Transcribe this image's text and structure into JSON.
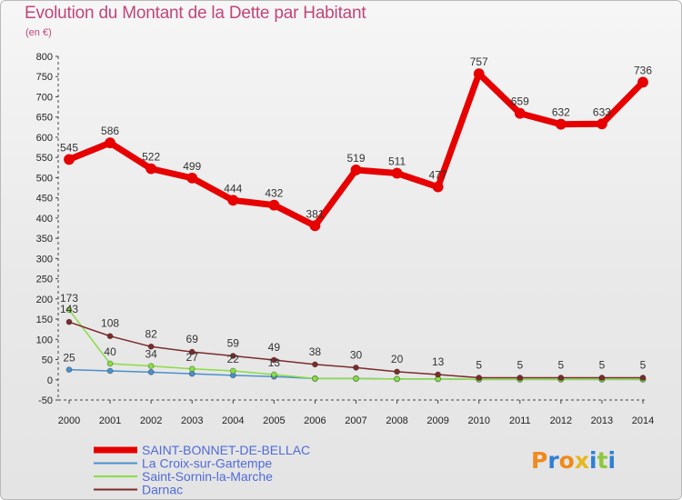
{
  "header": {
    "title": "Evolution du Montant de la Dette par Habitant",
    "subtitle": "(en €)"
  },
  "logo": {
    "letters": [
      "P",
      "r",
      "o",
      "x",
      "i",
      "t",
      "i"
    ]
  },
  "chart_data": {
    "type": "line",
    "title": "Evolution du Montant de la Dette par Habitant",
    "ylabel": "(en €)",
    "xlabel": "",
    "x": [
      "2000",
      "2001",
      "2002",
      "2003",
      "2004",
      "2005",
      "2006",
      "2007",
      "2008",
      "2009",
      "2010",
      "2011",
      "2012",
      "2013",
      "2014"
    ],
    "ylim": [
      -50,
      800
    ],
    "yticks": [
      -50,
      0,
      50,
      100,
      150,
      200,
      250,
      300,
      350,
      400,
      450,
      500,
      550,
      600,
      650,
      700,
      750,
      800
    ],
    "grid": false,
    "legend_position": "bottom-left",
    "series": [
      {
        "name": "SAINT-BONNET-DE-BELLAC",
        "color": "#e60000",
        "values": [
          545,
          586,
          522,
          499,
          444,
          432,
          381,
          519,
          511,
          477,
          757,
          659,
          632,
          633,
          736
        ],
        "labels": [
          "545",
          "586",
          "522",
          "499",
          "444",
          "432",
          "381",
          "519",
          "511",
          "477",
          "757",
          "659",
          "632",
          "633",
          "736"
        ]
      },
      {
        "name": "La Croix-sur-Gartempe",
        "color": "#4a90cc",
        "values": [
          25,
          22,
          19,
          15,
          11,
          8,
          3,
          3,
          2,
          2,
          1,
          1,
          1,
          1,
          1
        ],
        "labels": [
          "25",
          "",
          "",
          "",
          "",
          "",
          "",
          "",
          "",
          "",
          "",
          "",
          "",
          "",
          ""
        ]
      },
      {
        "name": "Saint-Sornin-la-Marche",
        "color": "#88dd44",
        "values": [
          173,
          40,
          34,
          27,
          22,
          13,
          3,
          3,
          2,
          2,
          1,
          1,
          1,
          1,
          1
        ],
        "labels": [
          "173",
          "40",
          "34",
          "27",
          "22",
          "13",
          "",
          "",
          "",
          "",
          "",
          "",
          "",
          "",
          ""
        ]
      },
      {
        "name": "Darnac",
        "color": "#7b2c2c",
        "values": [
          143,
          108,
          82,
          69,
          59,
          49,
          38,
          30,
          20,
          13,
          5,
          5,
          5,
          5,
          5
        ],
        "labels": [
          "143",
          "108",
          "82",
          "69",
          "59",
          "49",
          "38",
          "30",
          "20",
          "13",
          "5",
          "5",
          "5",
          "5",
          "5"
        ]
      }
    ]
  }
}
